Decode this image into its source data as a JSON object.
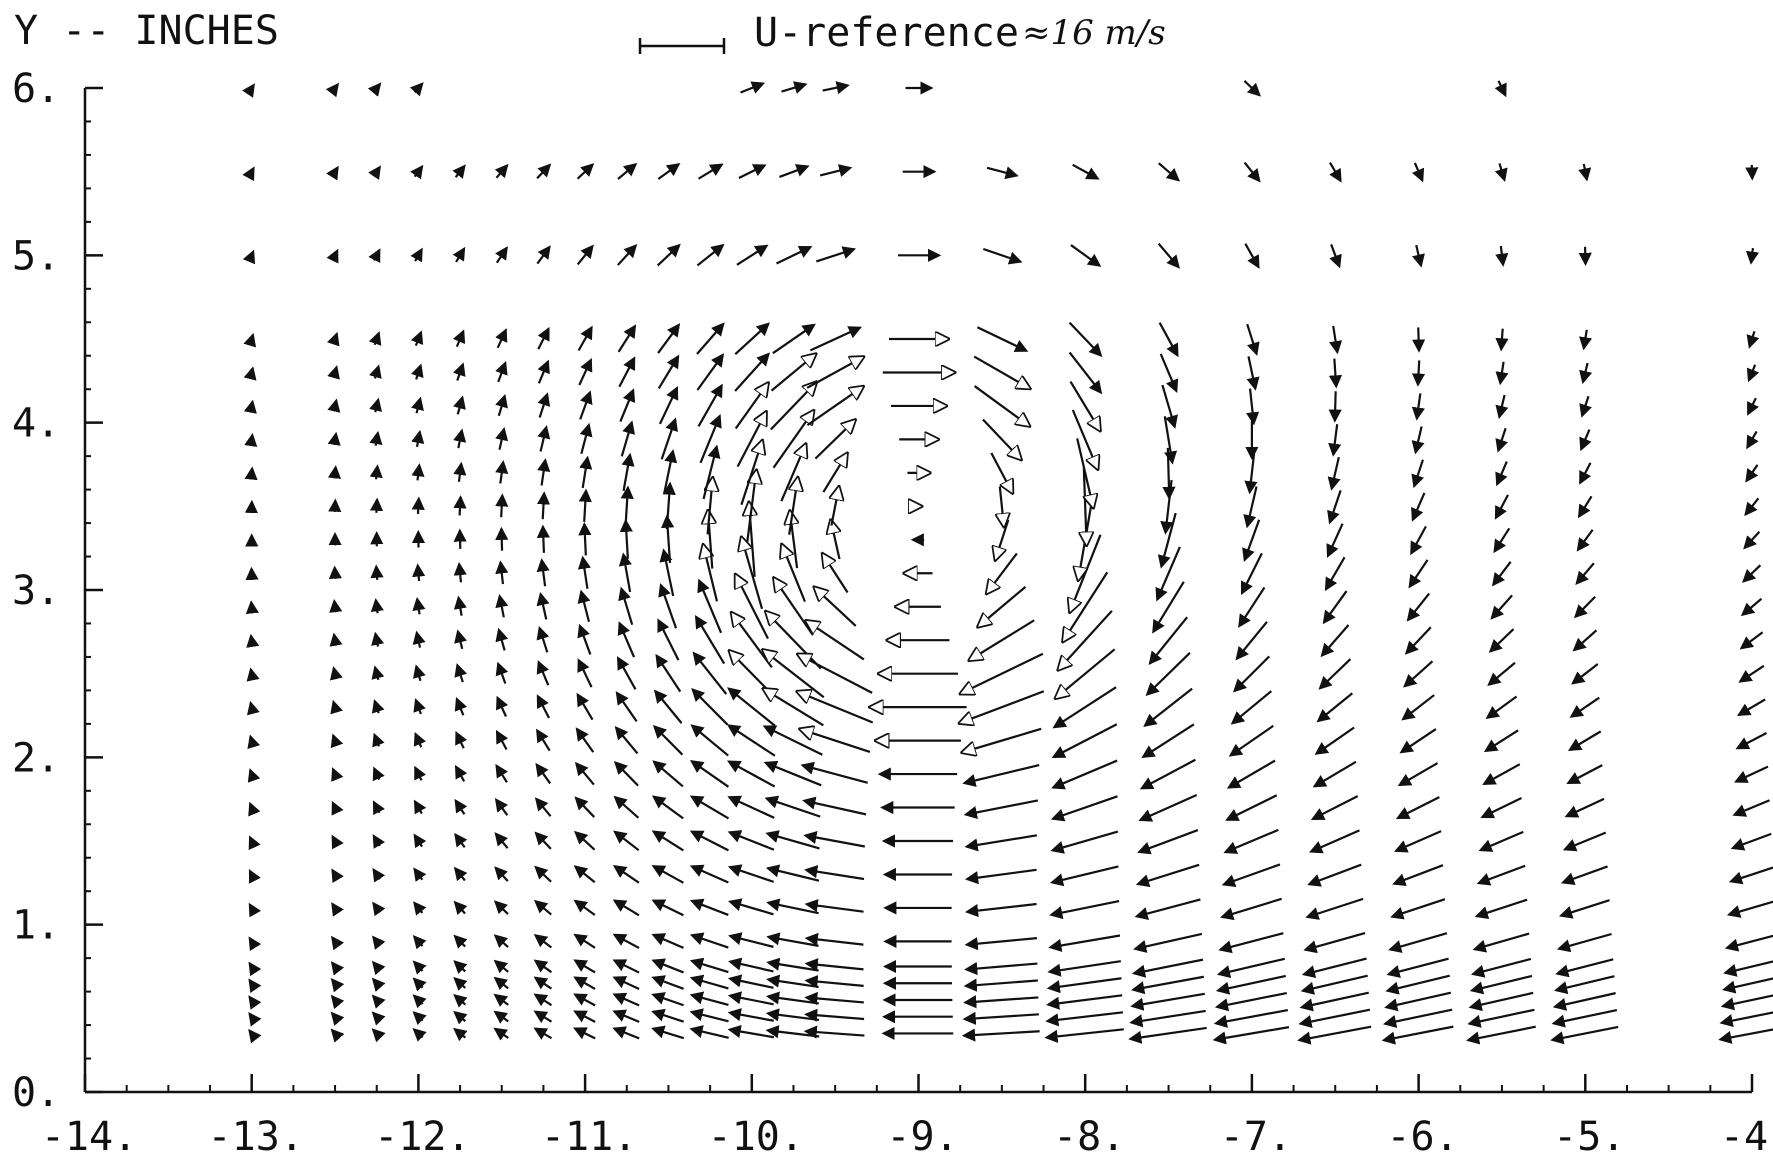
{
  "chart_data": {
    "type": "quiver",
    "ylabel": "Y -- INCHES",
    "xlabel": "",
    "xlim": [
      -14,
      -4
    ],
    "ylim": [
      0,
      6
    ],
    "x_ticks": [
      "-14.",
      "-13.",
      "-12.",
      "-11.",
      "-10.",
      "-9.",
      "-8.",
      "-7.",
      "-6.",
      "-5.",
      "-4."
    ],
    "y_ticks": [
      "0.",
      "1.",
      "2.",
      "3.",
      "4.",
      "5.",
      "6."
    ],
    "reference_vector": {
      "label": "U-reference",
      "value_text": "≈16 m/s",
      "magnitude": 16
    },
    "vortex_center": [
      -9.0,
      3.3
    ],
    "vortex_radius": 1.0,
    "grid_x": [
      -13.0,
      -12.5,
      -12.25,
      -12.0,
      -11.75,
      -11.5,
      -11.25,
      -11.0,
      -10.75,
      -10.5,
      -10.25,
      -10.0,
      -9.75,
      -9.5,
      -9.0,
      -8.5,
      -8.0,
      -7.5,
      -7.0,
      -6.5,
      -6.0,
      -5.5,
      -5.0,
      -4.0
    ],
    "grid_y": [
      0.35,
      0.45,
      0.55,
      0.65,
      0.75,
      0.9,
      1.1,
      1.3,
      1.5,
      1.7,
      1.9,
      2.1,
      2.3,
      2.5,
      2.7,
      2.9,
      3.1,
      3.3,
      3.5,
      3.7,
      3.9,
      4.1,
      4.3,
      4.5,
      5.0,
      5.5,
      6.0
    ],
    "grid_on": false,
    "legend": "top-center"
  }
}
